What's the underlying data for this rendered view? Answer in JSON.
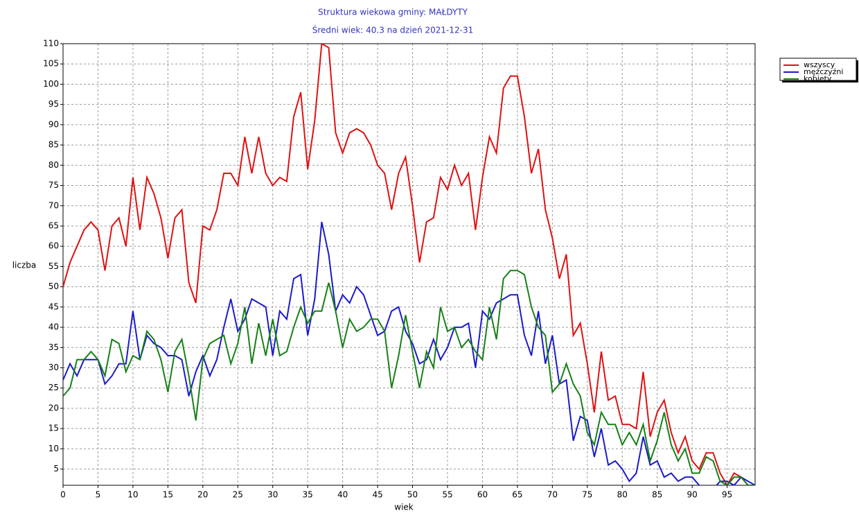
{
  "chart_data": {
    "type": "line",
    "title": "Struktura wiekowa gminy: MAŁDYTY",
    "subtitle": "Średni wiek: 40.3 na dzień 2021-12-31",
    "x_label": "wiek",
    "y_label": "liczba",
    "x": [
      0,
      1,
      2,
      3,
      4,
      5,
      6,
      7,
      8,
      9,
      10,
      11,
      12,
      13,
      14,
      15,
      16,
      17,
      18,
      19,
      20,
      21,
      22,
      23,
      24,
      25,
      26,
      27,
      28,
      29,
      30,
      31,
      32,
      33,
      34,
      35,
      36,
      37,
      38,
      39,
      40,
      41,
      42,
      43,
      44,
      45,
      46,
      47,
      48,
      49,
      50,
      51,
      52,
      53,
      54,
      55,
      56,
      57,
      58,
      59,
      60,
      61,
      62,
      63,
      64,
      65,
      66,
      67,
      68,
      69,
      70,
      71,
      72,
      73,
      74,
      75,
      76,
      77,
      78,
      79,
      80,
      81,
      82,
      83,
      84,
      85,
      86,
      87,
      88,
      89,
      90,
      91,
      92,
      93,
      94,
      95,
      96,
      97,
      98,
      99
    ],
    "series": [
      {
        "name": "wszyscy",
        "color": "#e01010",
        "values": [
          50,
          56,
          60,
          64,
          66,
          64,
          54,
          65,
          67,
          60,
          77,
          64,
          77,
          73,
          67,
          57,
          67,
          69,
          51,
          46,
          65,
          64,
          69,
          78,
          78,
          75,
          87,
          78,
          87,
          78,
          75,
          77,
          76,
          92,
          98,
          79,
          91,
          110,
          109,
          88,
          83,
          88,
          89,
          88,
          85,
          80,
          78,
          69,
          78,
          82,
          70,
          56,
          66,
          67,
          77,
          74,
          80,
          75,
          78,
          64,
          77,
          87,
          83,
          99,
          102,
          102,
          92,
          78,
          84,
          69,
          62,
          52,
          58,
          38,
          41,
          31,
          19,
          34,
          22,
          23,
          16,
          16,
          15,
          29,
          13,
          19,
          22,
          14,
          9,
          13,
          7,
          5,
          9,
          9,
          4,
          1,
          4,
          3,
          1,
          1
        ]
      },
      {
        "name": "mężczyźni",
        "color": "#1a1acc",
        "values": [
          27,
          31,
          28,
          32,
          32,
          32,
          26,
          28,
          31,
          31,
          44,
          32,
          38,
          36,
          35,
          33,
          33,
          32,
          23,
          29,
          33,
          28,
          32,
          40,
          47,
          39,
          42,
          47,
          46,
          45,
          33,
          44,
          42,
          52,
          53,
          38,
          47,
          66,
          58,
          44,
          48,
          46,
          50,
          48,
          43,
          38,
          39,
          44,
          45,
          39,
          36,
          31,
          32,
          37,
          32,
          35,
          40,
          40,
          41,
          30,
          44,
          42,
          46,
          47,
          48,
          48,
          38,
          33,
          44,
          31,
          38,
          26,
          27,
          12,
          18,
          17,
          8,
          15,
          6,
          7,
          5,
          2,
          4,
          13,
          6,
          7,
          3,
          4,
          2,
          3,
          3,
          1,
          0,
          0,
          2,
          2,
          1,
          3,
          2,
          1
        ]
      },
      {
        "name": "kobiety",
        "color": "#158015",
        "values": [
          23,
          25,
          32,
          32,
          34,
          32,
          28,
          37,
          36,
          29,
          33,
          32,
          39,
          37,
          32,
          24,
          34,
          37,
          28,
          17,
          32,
          36,
          37,
          38,
          31,
          36,
          45,
          31,
          41,
          33,
          42,
          33,
          34,
          40,
          45,
          41,
          44,
          44,
          51,
          44,
          35,
          42,
          39,
          40,
          42,
          42,
          39,
          25,
          33,
          43,
          34,
          25,
          34,
          30,
          45,
          39,
          40,
          35,
          37,
          34,
          32,
          45,
          37,
          52,
          54,
          54,
          53,
          45,
          40,
          38,
          24,
          26,
          31,
          26,
          23,
          14,
          11,
          19,
          16,
          16,
          11,
          14,
          11,
          16,
          7,
          12,
          19,
          11,
          7,
          10,
          4,
          4,
          8,
          7,
          2,
          1,
          3,
          3,
          1,
          1
        ]
      }
    ],
    "xlim": [
      0,
      99
    ],
    "ylim": [
      1,
      110
    ],
    "xticks": [
      0,
      5,
      10,
      15,
      20,
      25,
      30,
      35,
      40,
      45,
      50,
      55,
      60,
      65,
      70,
      75,
      80,
      85,
      90,
      95
    ],
    "yticks": [
      5,
      10,
      15,
      20,
      25,
      30,
      35,
      40,
      45,
      50,
      55,
      60,
      65,
      70,
      75,
      80,
      85,
      90,
      95,
      100,
      105,
      110
    ],
    "grid": true,
    "legend": "right"
  }
}
